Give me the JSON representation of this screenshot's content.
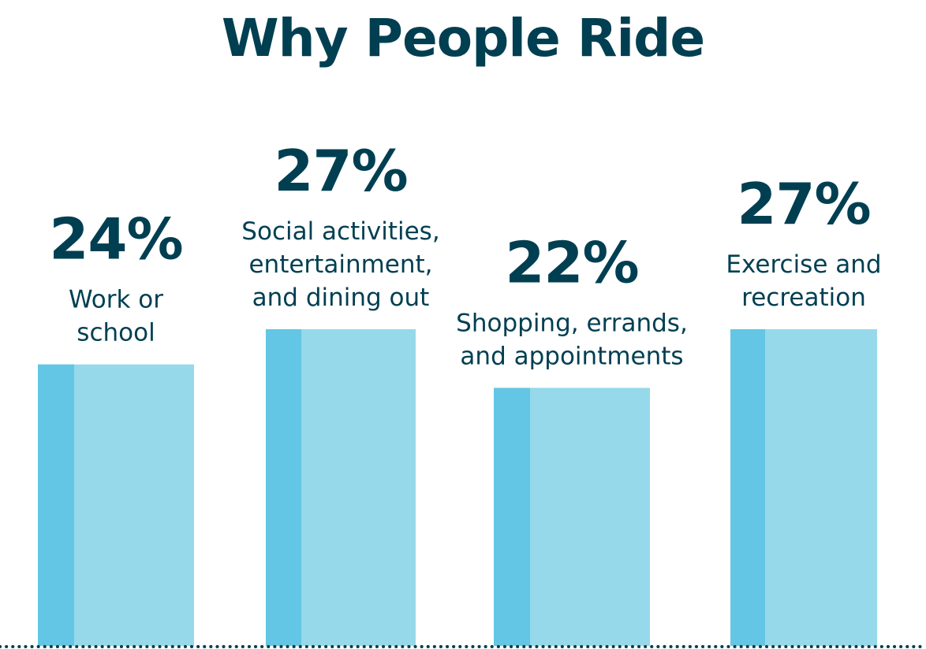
{
  "chart_data": {
    "type": "bar",
    "title": "Why People Ride",
    "xlabel": "",
    "ylabel": "",
    "ylim": [
      0,
      27
    ],
    "grid": false,
    "legend": "none",
    "categories": [
      [
        "Work or",
        "school"
      ],
      [
        "Social activities,",
        "entertainment,",
        "and dining out"
      ],
      [
        "Shopping, errands,",
        "and appointments"
      ],
      [
        "Exercise and",
        "recreation"
      ]
    ],
    "values": [
      24,
      27,
      22,
      27
    ],
    "value_labels": [
      "24%",
      "27%",
      "22%",
      "27%"
    ]
  },
  "colors": {
    "bar_main": "#96d9ea",
    "bar_accent": "#63c6e4",
    "text": "#003f51",
    "baseline": "#003f51"
  }
}
